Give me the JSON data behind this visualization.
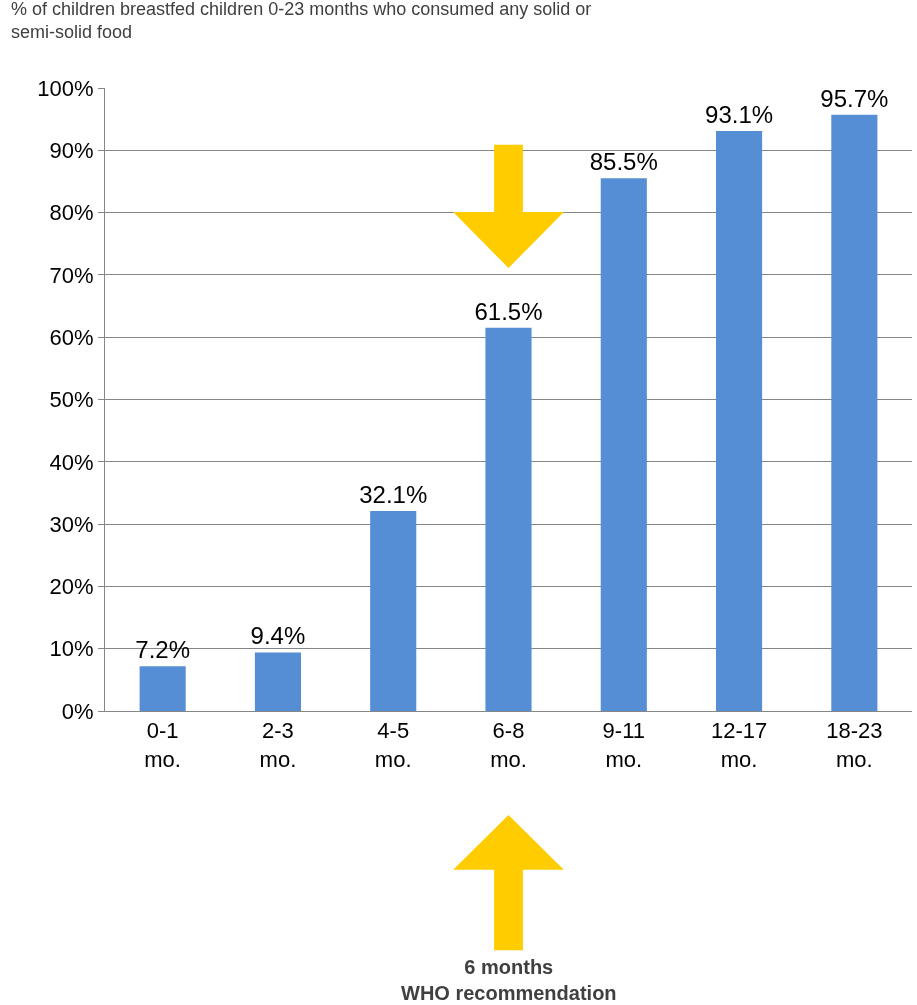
{
  "chart_data": {
    "type": "bar",
    "title": "% of children breastfed children 0-23 months who consumed any solid or semi-solid food",
    "categories": [
      "0-1 mo.",
      "2-3 mo.",
      "4-5 mo.",
      "6-8 mo.",
      "9-11 mo.",
      "12-17 mo.",
      "18-23 mo."
    ],
    "values": [
      7.2,
      9.4,
      32.1,
      61.5,
      85.5,
      93.1,
      95.7
    ],
    "value_labels": [
      "7.2%",
      "9.4%",
      "32.1%",
      "61.5%",
      "85.5%",
      "93.1%",
      "95.7%"
    ],
    "color": "#558ed5",
    "ylim": [
      0,
      100
    ],
    "yticks": [
      {
        "value": 0,
        "label": "0%"
      },
      {
        "value": 10,
        "label": "10%"
      },
      {
        "value": 20,
        "label": "20%"
      },
      {
        "value": 30,
        "label": "30%"
      },
      {
        "value": 40,
        "label": "40%"
      },
      {
        "value": 50,
        "label": "50%"
      },
      {
        "value": 60,
        "label": "60%"
      },
      {
        "value": 70,
        "label": "70%"
      },
      {
        "value": 80,
        "label": "80%"
      },
      {
        "value": 90,
        "label": "90%"
      },
      {
        "value": 100,
        "label": "100%"
      }
    ],
    "grid": "y",
    "legend": false,
    "annotations": [
      "6 months\nWHO recommendation"
    ]
  }
}
